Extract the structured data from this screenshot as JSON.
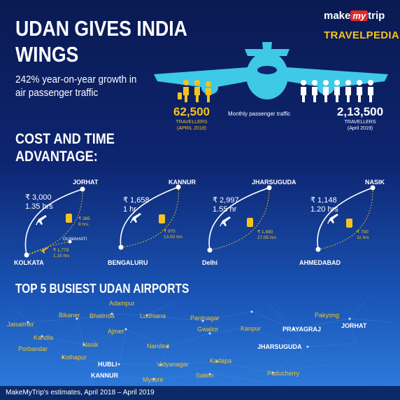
{
  "header": {
    "title_line1": "UDAN GIVES INDIA",
    "title_line2": "WINGS",
    "subtitle": "242% year-on-year growth in air passenger traffic"
  },
  "logo": {
    "make": "make",
    "my": "my",
    "trip": "trip",
    "brand": "TRAVELPEDIA"
  },
  "traffic": {
    "caption": "Monthly passenger traffic",
    "left": {
      "value": "62,500",
      "unit": "TRAVELLERS",
      "period": "(APRIL 2018)"
    },
    "right": {
      "value": "2,13,500",
      "unit": "TRAVELLERS",
      "period": "(April 2019)"
    }
  },
  "cost_section": {
    "line1": "COST AND TIME",
    "line2": "ADVANTAGE:"
  },
  "routes": [
    {
      "from": "KOLKATA",
      "to": "JORHAT",
      "air_cost": "₹ 3,000",
      "air_time": "1.35 hrs",
      "ground_cost": "₹ 385",
      "ground_time": "8 hrs",
      "via": "GUWAHATI",
      "via_cost": "₹ 1,779",
      "via_time": "1.15 hrs"
    },
    {
      "from": "BENGALURU",
      "to": "KANNUR",
      "air_cost": "₹ 1,658",
      "air_time": "1 hr",
      "ground_cost": "₹ 970",
      "ground_time": "13.50 hrs"
    },
    {
      "from": "Delhi",
      "to": "JHARSUGUDA",
      "air_cost": "₹ 2,997",
      "air_time": "1.55 hr",
      "ground_cost": "₹ 1,490",
      "ground_time": "27.05 hrs"
    },
    {
      "from": "AHMEDABAD",
      "to": "NASIK",
      "air_cost": "₹ 1,148",
      "air_time": "1.20 hrs",
      "ground_cost": "₹ 700",
      "ground_time": "11 hrs"
    }
  ],
  "airports_section": {
    "title": "TOP 5 BUSIEST UDAN AIRPORTS"
  },
  "airports": [
    {
      "name": "Adampur"
    },
    {
      "name": "Bikaner"
    },
    {
      "name": "Bhatinda"
    },
    {
      "name": "Ludhiana"
    },
    {
      "name": "Pantnagar"
    },
    {
      "name": "Pakyong"
    },
    {
      "name": "Jaisalmer"
    },
    {
      "name": "Gwalior"
    },
    {
      "name": "Kanpur"
    },
    {
      "name": "PRAYAGRAJ"
    },
    {
      "name": "JORHAT"
    },
    {
      "name": "Kandla"
    },
    {
      "name": "Ajmer"
    },
    {
      "name": "Porbandar"
    },
    {
      "name": "Nasik"
    },
    {
      "name": "Nanded"
    },
    {
      "name": "JHARSUGUDA"
    },
    {
      "name": "Kolhapur"
    },
    {
      "name": "HUBLI"
    },
    {
      "name": "Vidyanagar"
    },
    {
      "name": "Kadapa"
    },
    {
      "name": "KANNUR"
    },
    {
      "name": "Salem"
    },
    {
      "name": "Puducherry"
    },
    {
      "name": "Mysore"
    }
  ],
  "footer": {
    "text": "MakeMyTrip's estimates, April 2018 – April 2019"
  },
  "colors": {
    "accent": "#f4c320",
    "plane": "#3ec9e6"
  }
}
